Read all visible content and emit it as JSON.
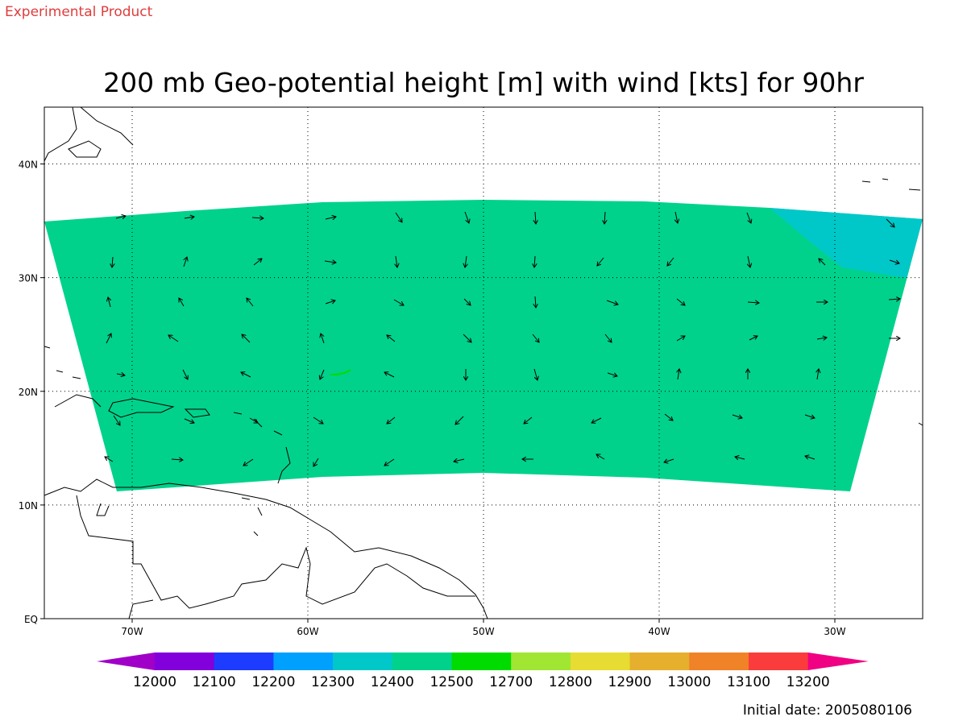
{
  "header": {
    "label": "Experimental Product"
  },
  "title": "200 mb Geo-potential height [m] with wind [kts] for 90hr",
  "map": {
    "lonlim": [
      -75,
      -25
    ],
    "latlim": [
      0,
      45
    ],
    "lon_ticks": [
      {
        "value": -70,
        "label": "70W"
      },
      {
        "value": -60,
        "label": "60W"
      },
      {
        "value": -50,
        "label": "50W"
      },
      {
        "value": -40,
        "label": "40W"
      },
      {
        "value": -30,
        "label": "30W"
      }
    ],
    "lat_ticks": [
      {
        "value": 0,
        "label": "EQ"
      },
      {
        "value": 10,
        "label": "10N"
      },
      {
        "value": 20,
        "label": "20N"
      },
      {
        "value": 30,
        "label": "30N"
      },
      {
        "value": 40,
        "label": "40N"
      }
    ],
    "grid": true
  },
  "colorbar": {
    "levels": [
      12000,
      12100,
      12200,
      12300,
      12400,
      12500,
      12700,
      12800,
      12900,
      13000,
      13100,
      13200
    ],
    "colors": [
      "#a000c8",
      "#8200dc",
      "#1e3cff",
      "#00a0ff",
      "#00c8c8",
      "#00d28c",
      "#00dc00",
      "#a0e632",
      "#e6dc32",
      "#e6af2d",
      "#f08228",
      "#fa3c3c",
      "#f00082"
    ]
  },
  "footer": {
    "initial_date": "Initial date: 2005080106"
  }
}
